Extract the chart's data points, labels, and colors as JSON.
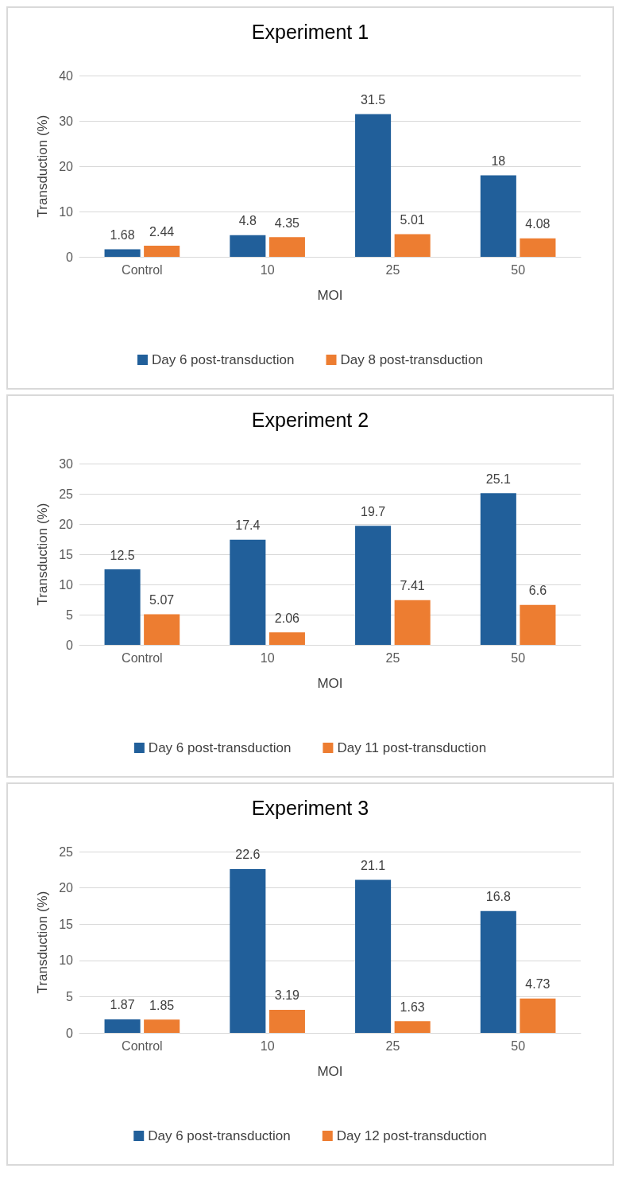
{
  "chart_data": [
    {
      "type": "bar",
      "title": "Experiment 1",
      "xlabel": "MOI",
      "ylabel": "Transduction (%)",
      "categories": [
        "Control",
        "10",
        "25",
        "50"
      ],
      "series": [
        {
          "name": "Day 6 post-transduction",
          "color": "#215f9a",
          "values": [
            1.68,
            4.8,
            31.5,
            18
          ]
        },
        {
          "name": "Day 8 post-transduction",
          "color": "#ed7d31",
          "values": [
            2.44,
            4.35,
            5.01,
            4.08
          ]
        }
      ],
      "ylim": [
        0,
        40
      ],
      "yticks": [
        0,
        10,
        20,
        30,
        40
      ],
      "grid": "y",
      "legend": "bottom",
      "data_labels": true
    },
    {
      "type": "bar",
      "title": "Experiment 2",
      "xlabel": "MOI",
      "ylabel": "Transduction (%)",
      "categories": [
        "Control",
        "10",
        "25",
        "50"
      ],
      "series": [
        {
          "name": "Day 6 post-transduction",
          "color": "#215f9a",
          "values": [
            12.5,
            17.4,
            19.7,
            25.1
          ]
        },
        {
          "name": "Day 11 post-transduction",
          "color": "#ed7d31",
          "values": [
            5.07,
            2.06,
            7.41,
            6.6
          ]
        }
      ],
      "ylim": [
        0,
        30
      ],
      "yticks": [
        0,
        5,
        10,
        15,
        20,
        25,
        30
      ],
      "grid": "y",
      "legend": "bottom",
      "data_labels": true
    },
    {
      "type": "bar",
      "title": "Experiment 3",
      "xlabel": "MOI",
      "ylabel": "Transduction (%)",
      "categories": [
        "Control",
        "10",
        "25",
        "50"
      ],
      "series": [
        {
          "name": "Day 6 post-transduction",
          "color": "#215f9a",
          "values": [
            1.87,
            22.6,
            21.1,
            16.8
          ]
        },
        {
          "name": "Day 12 post-transduction",
          "color": "#ed7d31",
          "values": [
            1.85,
            3.19,
            1.63,
            4.73
          ]
        }
      ],
      "ylim": [
        0,
        25
      ],
      "yticks": [
        0,
        5,
        10,
        15,
        20,
        25
      ],
      "grid": "y",
      "legend": "bottom",
      "data_labels": true
    }
  ]
}
